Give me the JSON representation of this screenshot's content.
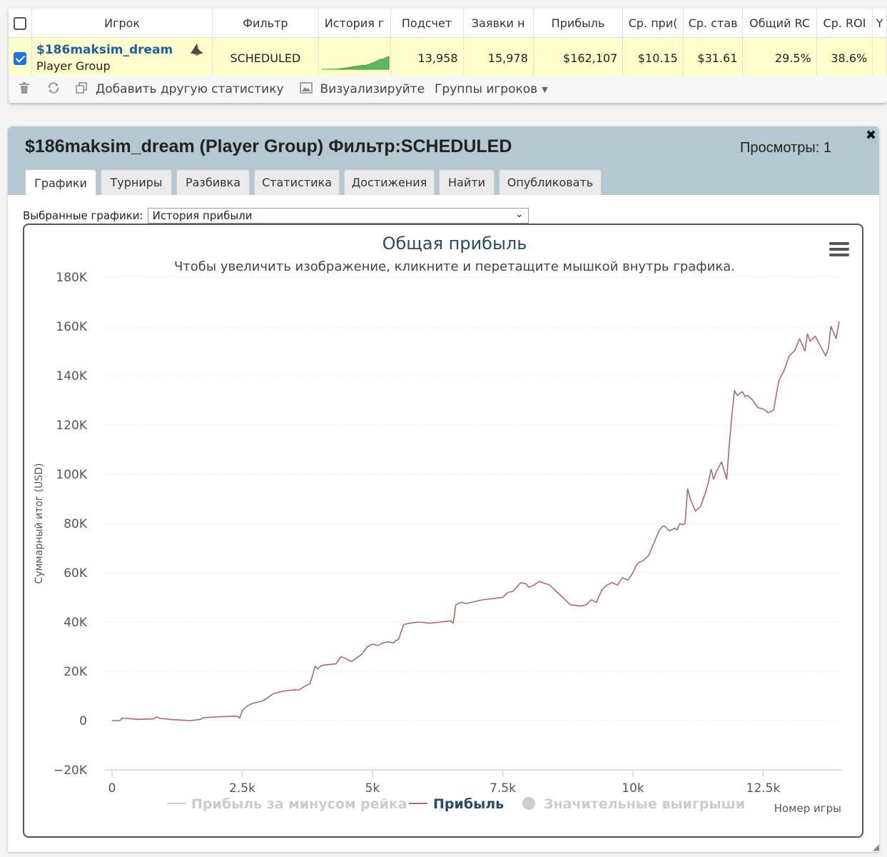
{
  "table": {
    "headers": [
      "Игрок",
      "Фильтр",
      "История г",
      "Подсчет",
      "Заявки н",
      "Прибыль",
      "Ср. при(",
      "Ср. став",
      "Общий RC",
      "Ср. ROI",
      "Y"
    ],
    "row": {
      "player": "$186maksim_dream",
      "player_sub": "Player Group",
      "filter": "SCHEDULED",
      "count": "13,958",
      "entries": "15,978",
      "profit": "$162,107",
      "avg_profit": "$10.15",
      "avg_stake": "$31.61",
      "total_roi": "29.5%",
      "avg_roi": "38.6%"
    },
    "sparkline_values": [
      0,
      0,
      0,
      0,
      1,
      1,
      2,
      4,
      6,
      9,
      12,
      16,
      20,
      25,
      30,
      33,
      38,
      41,
      46,
      50,
      47,
      55,
      60,
      77,
      82,
      98,
      110,
      127,
      124,
      140,
      150,
      162
    ],
    "toolbar": {
      "add_stats": "Добавить другую статистику",
      "visualize": "Визуализируйте",
      "groups": "Группы игроков"
    }
  },
  "panel": {
    "title": "$186maksim_dream (Player Group) Фильтр:SCHEDULED",
    "views": "Просмотры: 1",
    "tabs": [
      "Графики",
      "Турниры",
      "Разбивка",
      "Статистика",
      "Достижения",
      "Найти",
      "Опубликовать"
    ],
    "active_tab": 0,
    "select_label": "Выбранные графики:",
    "select_value": "История прибыли"
  },
  "chart_data": {
    "type": "line",
    "title": "Общая прибыль",
    "subtitle": "Чтобы увеличить изображение, кликните и перетащите мышкой внутрь графика.",
    "xlabel": "Номер игры",
    "ylabel": "Суммарный итог (USD)",
    "xlim": [
      0,
      14000
    ],
    "ylim": [
      -20000,
      180000
    ],
    "x_ticks": [
      0,
      2500,
      5000,
      7500,
      10000,
      12500
    ],
    "x_tick_labels": [
      "0",
      "2.5k",
      "5k",
      "7.5k",
      "10k",
      "12.5k"
    ],
    "y_ticks": [
      -20000,
      0,
      20000,
      40000,
      60000,
      80000,
      100000,
      120000,
      140000,
      160000,
      180000
    ],
    "y_tick_labels": [
      "−20K",
      "0",
      "20K",
      "40K",
      "60K",
      "80K",
      "100K",
      "120K",
      "140K",
      "160K",
      "180K"
    ],
    "grid": true,
    "legend_position": "bottom",
    "legend": [
      {
        "name": "Прибыль за минусом рейка",
        "visible": false
      },
      {
        "name": "Прибыль",
        "visible": true
      },
      {
        "name": "Значительные выигрыши",
        "visible": false
      }
    ],
    "series": [
      {
        "name": "Прибыль",
        "color": "#b06a6a",
        "x": [
          0,
          150,
          200,
          500,
          800,
          850,
          900,
          1100,
          1500,
          1700,
          1750,
          2000,
          2400,
          2450,
          2500,
          2600,
          2700,
          2900,
          3000,
          3100,
          3300,
          3500,
          3600,
          3700,
          3800,
          3900,
          3950,
          4000,
          4050,
          4300,
          4400,
          4600,
          4800,
          4900,
          5000,
          5100,
          5200,
          5300,
          5400,
          5450,
          5500,
          5600,
          5700,
          5900,
          6100,
          6300,
          6500,
          6550,
          6600,
          6700,
          6800,
          6900,
          7100,
          7300,
          7500,
          7600,
          7700,
          7800,
          7850,
          7950,
          8000,
          8100,
          8200,
          8400,
          8600,
          8800,
          9000,
          9100,
          9200,
          9300,
          9400,
          9500,
          9600,
          9700,
          9800,
          9900,
          10000,
          10050,
          10100,
          10200,
          10300,
          10400,
          10500,
          10550,
          10600,
          10700,
          10800,
          10850,
          10900,
          10950,
          11000,
          11050,
          11100,
          11200,
          11300,
          11400,
          11450,
          11500,
          11550,
          11600,
          11700,
          11800,
          11850,
          11900,
          11950,
          12000,
          12100,
          12150,
          12200,
          12300,
          12400,
          12500,
          12600,
          12700,
          12800,
          12900,
          13000,
          13100,
          13200,
          13300,
          13350,
          13400,
          13500,
          13600,
          13700,
          13750,
          13800,
          13900,
          13958
        ],
        "y": [
          0,
          0,
          1000,
          500,
          700,
          1500,
          1000,
          500,
          0,
          500,
          1200,
          1500,
          1800,
          1000,
          4000,
          6000,
          7000,
          8000,
          9500,
          11000,
          12000,
          12500,
          12500,
          14000,
          15000,
          22000,
          21000,
          22000,
          22500,
          23000,
          26000,
          24000,
          27000,
          30000,
          31000,
          30500,
          31500,
          32000,
          31500,
          32500,
          33000,
          39000,
          39500,
          40000,
          39500,
          40000,
          40500,
          39500,
          47000,
          48000,
          47500,
          48000,
          49000,
          49500,
          50000,
          52000,
          52500,
          55000,
          56000,
          55500,
          54000,
          55000,
          56500,
          55000,
          51000,
          47000,
          46500,
          47000,
          49000,
          48000,
          53000,
          55000,
          56000,
          55000,
          58000,
          57000,
          60000,
          62500,
          64000,
          65000,
          67000,
          72000,
          77000,
          78500,
          79000,
          77000,
          78000,
          77500,
          80000,
          79500,
          80000,
          94000,
          90000,
          85000,
          87000,
          93000,
          97000,
          102000,
          98000,
          101000,
          105000,
          98000,
          112000,
          124000,
          134000,
          132000,
          133500,
          131500,
          132000,
          130000,
          127000,
          126500,
          125000,
          126000,
          138000,
          142000,
          148000,
          150000,
          155000,
          150000,
          157000,
          154000,
          156000,
          152000,
          148000,
          151000,
          160000,
          155000,
          162000
        ]
      }
    ]
  }
}
